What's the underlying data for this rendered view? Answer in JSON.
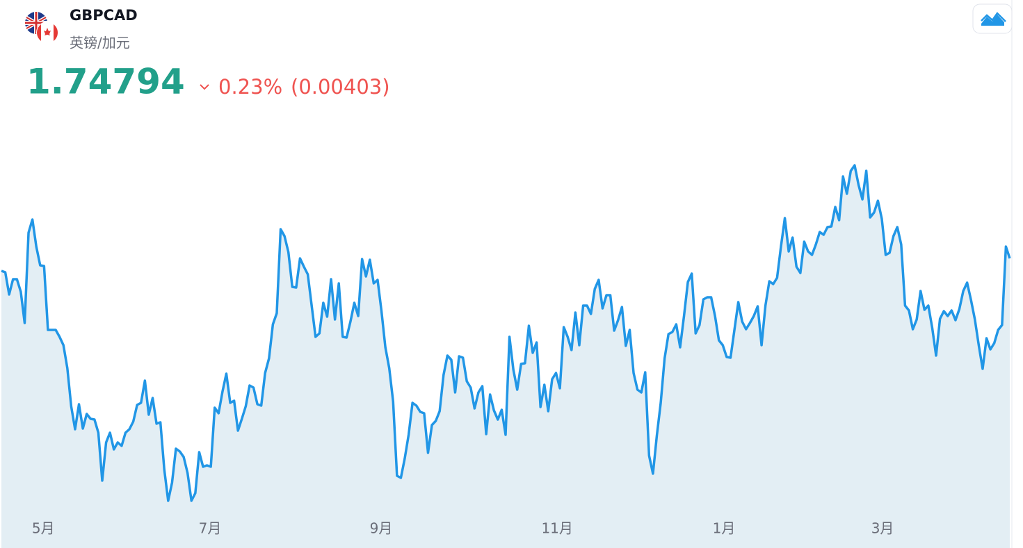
{
  "header": {
    "symbol": "GBPCAD",
    "name": "英镑/加元",
    "price": "1.74794",
    "change_percent": "0.23%",
    "change": "(0.00403)"
  },
  "chart_data": {
    "type": "line",
    "color": "#2196e6",
    "fill": "#e3eef4",
    "xlim": [
      0,
      260
    ],
    "xticks": [
      {
        "value": 10.8,
        "label": "5月"
      },
      {
        "value": 53.8,
        "label": "7月"
      },
      {
        "value": 97.9,
        "label": "9月"
      },
      {
        "value": 143.3,
        "label": "11月"
      },
      {
        "value": 186.3,
        "label": "1月"
      },
      {
        "value": 227.2,
        "label": "3月"
      }
    ],
    "ylim": [
      1.65469,
      1.80344
    ],
    "values": [
      1.74344,
      1.74294,
      1.73494,
      1.74044,
      1.74044,
      1.73594,
      1.72469,
      1.75719,
      1.76194,
      1.75219,
      1.74544,
      1.74519,
      1.72219,
      1.72219,
      1.72219,
      1.71969,
      1.71669,
      1.70844,
      1.69469,
      1.68644,
      1.69544,
      1.68669,
      1.69194,
      1.69019,
      1.68994,
      1.68519,
      1.66794,
      1.68169,
      1.68519,
      1.67919,
      1.68169,
      1.68044,
      1.68519,
      1.68644,
      1.68919,
      1.69519,
      1.69594,
      1.70394,
      1.69169,
      1.69769,
      1.68844,
      1.68894,
      1.67194,
      1.66069,
      1.66719,
      1.67944,
      1.67844,
      1.67644,
      1.67069,
      1.66069,
      1.66344,
      1.67819,
      1.67294,
      1.67344,
      1.67294,
      1.69419,
      1.69219,
      1.69994,
      1.70644,
      1.69594,
      1.69669,
      1.68594,
      1.69019,
      1.69469,
      1.70219,
      1.70144,
      1.69544,
      1.69494,
      1.70669,
      1.71194,
      1.72419,
      1.72819,
      1.75844,
      1.75594,
      1.75019,
      1.73769,
      1.73744,
      1.74794,
      1.74494,
      1.74219,
      1.73094,
      1.71969,
      1.72094,
      1.73194,
      1.72694,
      1.74044,
      1.72594,
      1.73894,
      1.71969,
      1.71944,
      1.72519,
      1.73194,
      1.72719,
      1.74769,
      1.74144,
      1.74744,
      1.73894,
      1.74019,
      1.72894,
      1.71594,
      1.70844,
      1.69644,
      1.66969,
      1.66894,
      1.67594,
      1.68444,
      1.69594,
      1.69494,
      1.69269,
      1.69219,
      1.67794,
      1.68794,
      1.68944,
      1.69294,
      1.70594,
      1.71294,
      1.71144,
      1.69969,
      1.71269,
      1.71219,
      1.70369,
      1.70144,
      1.69394,
      1.69969,
      1.70194,
      1.68469,
      1.69894,
      1.69319,
      1.68994,
      1.69344,
      1.68444,
      1.71969,
      1.70794,
      1.70069,
      1.70994,
      1.71019,
      1.72369,
      1.71394,
      1.71769,
      1.69444,
      1.70244,
      1.69294,
      1.70444,
      1.70669,
      1.70119,
      1.72319,
      1.71969,
      1.71494,
      1.72844,
      1.71669,
      1.73094,
      1.73094,
      1.72794,
      1.73694,
      1.74019,
      1.72994,
      1.73469,
      1.73469,
      1.72194,
      1.72569,
      1.73044,
      1.71644,
      1.72219,
      1.70669,
      1.70069,
      1.69969,
      1.70694,
      1.67694,
      1.67044,
      1.68419,
      1.69594,
      1.71194,
      1.72069,
      1.72144,
      1.72419,
      1.71594,
      1.72719,
      1.73944,
      1.74244,
      1.72094,
      1.72394,
      1.73319,
      1.73394,
      1.73394,
      1.72719,
      1.71844,
      1.71669,
      1.71244,
      1.71219,
      1.72219,
      1.73219,
      1.72519,
      1.72244,
      1.72469,
      1.72719,
      1.73069,
      1.71669,
      1.73094,
      1.73969,
      1.73869,
      1.74094,
      1.75219,
      1.76244,
      1.75044,
      1.75544,
      1.74494,
      1.74269,
      1.75394,
      1.75044,
      1.74919,
      1.75294,
      1.75744,
      1.75644,
      1.75919,
      1.75944,
      1.76644,
      1.76169,
      1.77744,
      1.77119,
      1.77944,
      1.78144,
      1.77444,
      1.76919,
      1.77944,
      1.76269,
      1.76444,
      1.76869,
      1.76219,
      1.74919,
      1.74994,
      1.75594,
      1.75919,
      1.75294,
      1.73094,
      1.72919,
      1.72244,
      1.72594,
      1.73619,
      1.72944,
      1.73094,
      1.72294,
      1.71294,
      1.72619,
      1.72894,
      1.72719,
      1.72919,
      1.72569,
      1.72969,
      1.73619,
      1.73919,
      1.73294,
      1.72594,
      1.71669,
      1.70819,
      1.71919,
      1.71519,
      1.71744,
      1.72219,
      1.72394,
      1.75219,
      1.74794
    ]
  }
}
